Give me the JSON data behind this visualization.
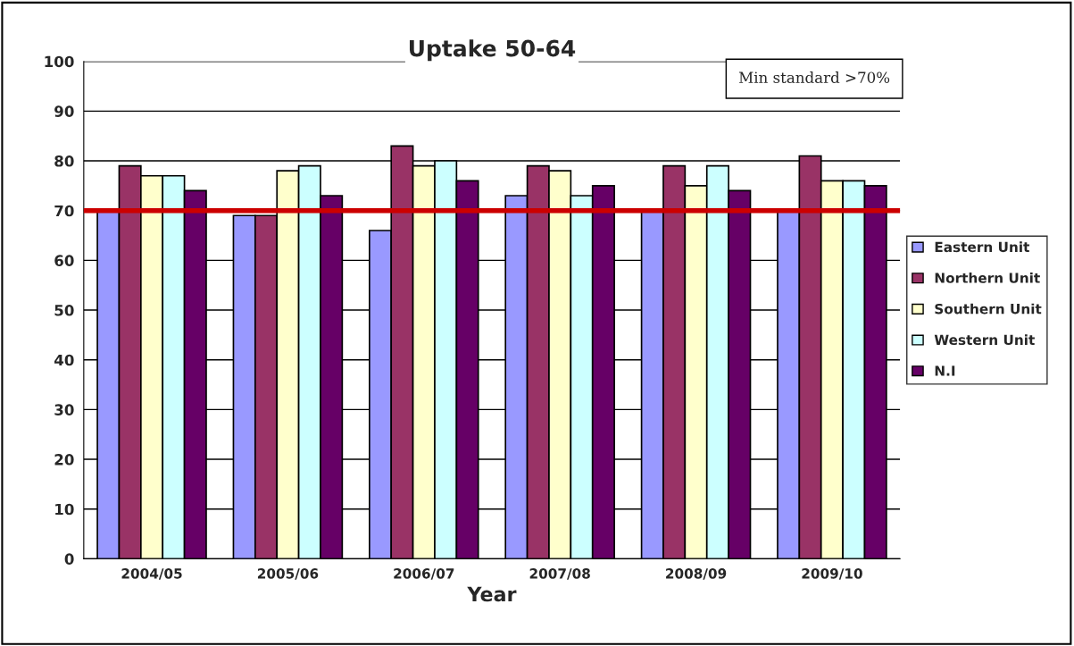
{
  "chart_data": {
    "type": "bar",
    "title": "Uptake 50-64",
    "xlabel": "Year",
    "categories": [
      "2004/05",
      "2005/06",
      "2006/07",
      "2007/08",
      "2008/09",
      "2009/10"
    ],
    "series": [
      {
        "name": "Eastern Unit",
        "color": "#9999ff",
        "values": [
          70,
          69,
          66,
          73,
          70,
          70
        ]
      },
      {
        "name": "Northern Unit",
        "color": "#993366",
        "values": [
          79,
          69,
          83,
          79,
          79,
          81
        ]
      },
      {
        "name": "Southern Unit",
        "color": "#ffffcc",
        "values": [
          77,
          78,
          79,
          78,
          75,
          76
        ]
      },
      {
        "name": "Western Unit",
        "color": "#ccffff",
        "values": [
          77,
          79,
          80,
          73,
          79,
          76
        ]
      },
      {
        "name": "N.I",
        "color": "#660066",
        "values": [
          74,
          73,
          76,
          75,
          74,
          75
        ]
      }
    ],
    "ylim": [
      0,
      100
    ],
    "yticks": [
      0,
      10,
      20,
      30,
      40,
      50,
      60,
      70,
      80,
      90,
      100
    ],
    "ref_lines": [
      {
        "axis": "y",
        "value": 70,
        "color": "#cc0000"
      }
    ],
    "annotations": [
      "Min standard >70%"
    ],
    "grid": "y",
    "legend": "right"
  }
}
